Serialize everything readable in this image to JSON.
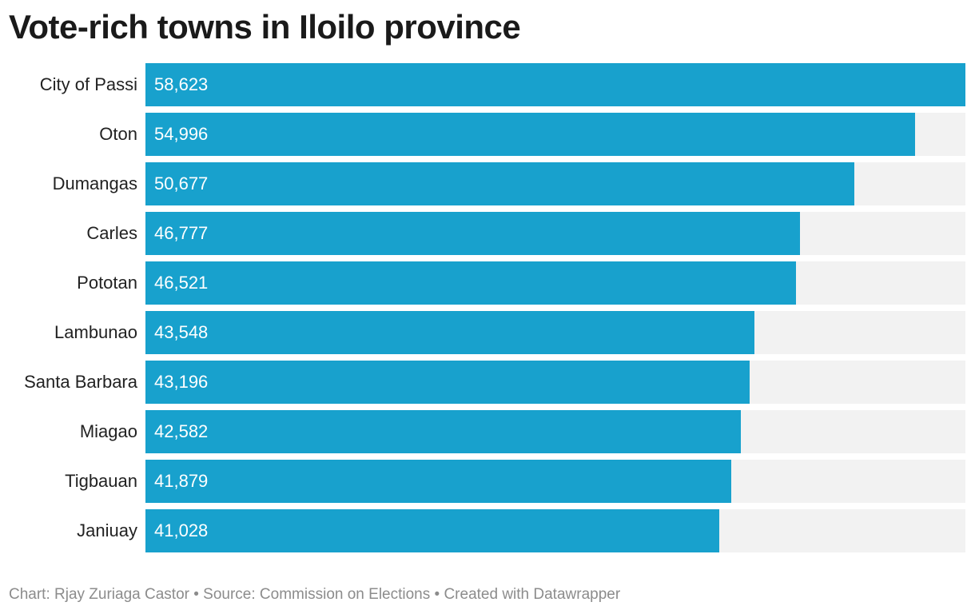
{
  "chart_data": {
    "type": "bar",
    "orientation": "horizontal",
    "title": "Vote-rich towns in Iloilo province",
    "categories": [
      "City of Passi",
      "Oton",
      "Dumangas",
      "Carles",
      "Pototan",
      "Lambunao",
      "Santa Barbara",
      "Miagao",
      "Tigbauan",
      "Janiuay"
    ],
    "values": [
      58623,
      54996,
      50677,
      46777,
      46521,
      43548,
      43196,
      42582,
      41879,
      41028
    ],
    "value_labels": [
      "58,623",
      "54,996",
      "50,677",
      "46,777",
      "46,521",
      "43,548",
      "43,196",
      "42,582",
      "41,879",
      "41,028"
    ],
    "xlim": [
      0,
      58623
    ],
    "grid": false,
    "legend": "none",
    "bar_color": "#18a1cd",
    "track_color": "#f2f2f2"
  },
  "footer": {
    "text": "Chart: Rjay Zuriaga Castor • Source: Commission on Elections • Created with Datawrapper"
  }
}
